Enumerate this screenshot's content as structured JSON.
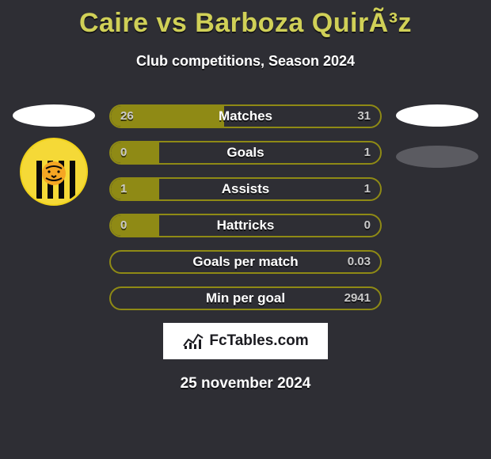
{
  "colors": {
    "background": "#2e2e34",
    "title": "#d0d057",
    "text": "#ffffff",
    "row_border": "#8f8a15",
    "row_fill": "#8f8a15",
    "row_track": "#2e2e34",
    "ellipse_grey": "#5b5b61",
    "value_left": "#c9c9c9",
    "value_right": "#c9c9c9"
  },
  "fonts": {
    "title_size": 34,
    "subtitle_size": 18,
    "row_label_size": 17,
    "row_value_size": 15,
    "footer_size": 19
  },
  "header": {
    "title": "Caire vs Barboza QuirÃ³z",
    "subtitle": "Club competitions, Season 2024"
  },
  "left_team": {
    "badge_text": "HE STRONGEST",
    "badge_font_size": 8
  },
  "rows": [
    {
      "label": "Matches",
      "left_value": "26",
      "right_value": "31",
      "left_pct": 42,
      "right_pct": 0
    },
    {
      "label": "Goals",
      "left_value": "0",
      "right_value": "1",
      "left_pct": 18,
      "right_pct": 0
    },
    {
      "label": "Assists",
      "left_value": "1",
      "right_value": "1",
      "left_pct": 18,
      "right_pct": 0
    },
    {
      "label": "Hattricks",
      "left_value": "0",
      "right_value": "0",
      "left_pct": 18,
      "right_pct": 0
    },
    {
      "label": "Goals per match",
      "left_value": "",
      "right_value": "0.03",
      "left_pct": 0,
      "right_pct": 0
    },
    {
      "label": "Min per goal",
      "left_value": "",
      "right_value": "2941",
      "left_pct": 0,
      "right_pct": 0
    }
  ],
  "branding": {
    "text": "FcTables.com"
  },
  "footer": {
    "date": "25 november 2024"
  }
}
